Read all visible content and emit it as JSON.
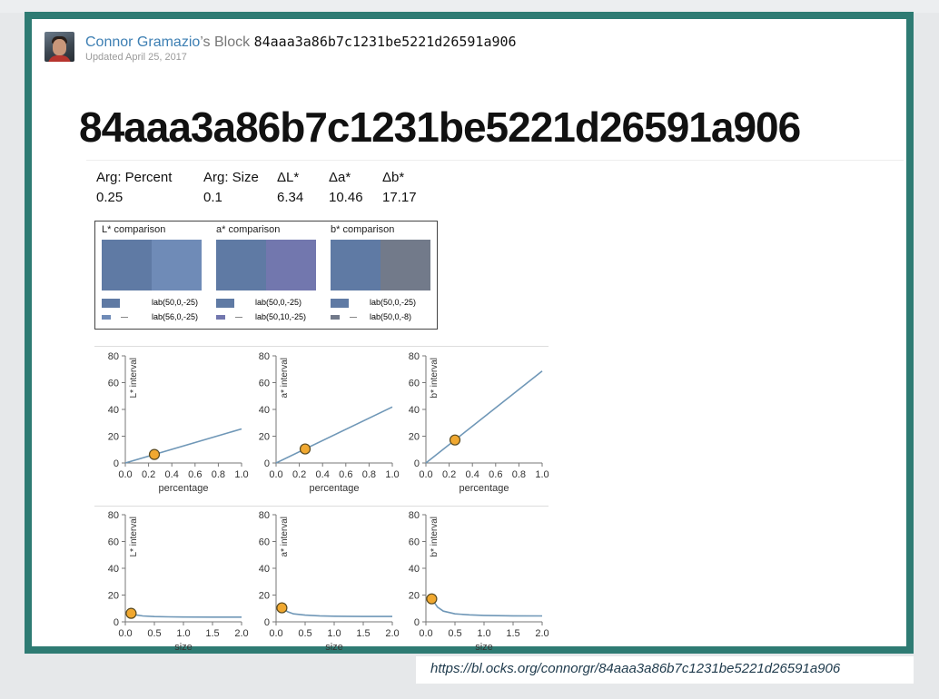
{
  "header": {
    "author": "Connor Gramazio",
    "possessive": "’s Block",
    "block_id": "84aaa3a86b7c1231be5221d26591a906",
    "updated": "Updated April 25, 2017"
  },
  "title": "84aaa3a86b7c1231be5221d26591a906",
  "args": [
    {
      "label": "Arg: Percent",
      "value": "0.25"
    },
    {
      "label": "Arg: Size",
      "value": "0.1"
    },
    {
      "label": "ΔL*",
      "value": "6.34"
    },
    {
      "label": "Δa*",
      "value": "10.46"
    },
    {
      "label": "Δb*",
      "value": "17.17"
    }
  ],
  "comparisons": [
    {
      "title": "L* comparison",
      "color_a": "#5f7aa4",
      "color_b": "#6f8bb7",
      "label_a": "lab(50,0,-25)",
      "label_b": "lab(56,0,-25)"
    },
    {
      "title": "a* comparison",
      "color_a": "#5f7aa4",
      "color_b": "#7277ae",
      "label_a": "lab(50,0,-25)",
      "label_b": "lab(50,10,-25)"
    },
    {
      "title": "b* comparison",
      "color_a": "#5f7aa4",
      "color_b": "#727a8a",
      "label_a": "lab(50,0,-25)",
      "label_b": "lab(50,0,-8)"
    }
  ],
  "chart_data": [
    {
      "type": "line",
      "xlabel": "percentage",
      "ylabel": "L* interval",
      "xlim": [
        0,
        1
      ],
      "ylim": [
        0,
        80
      ],
      "xticks": [
        "0.0",
        "0.2",
        "0.4",
        "0.6",
        "0.8",
        "1.0"
      ],
      "yticks": [
        "0",
        "20",
        "40",
        "60",
        "80"
      ],
      "x": [
        0,
        1.0
      ],
      "y": [
        0,
        25.4
      ],
      "point": {
        "x": 0.25,
        "y": 6.34
      }
    },
    {
      "type": "line",
      "xlabel": "percentage",
      "ylabel": "a* interval",
      "xlim": [
        0,
        1
      ],
      "ylim": [
        0,
        80
      ],
      "xticks": [
        "0.0",
        "0.2",
        "0.4",
        "0.6",
        "0.8",
        "1.0"
      ],
      "yticks": [
        "0",
        "20",
        "40",
        "60",
        "80"
      ],
      "x": [
        0,
        1.0
      ],
      "y": [
        0,
        41.8
      ],
      "point": {
        "x": 0.25,
        "y": 10.46
      }
    },
    {
      "type": "line",
      "xlabel": "percentage",
      "ylabel": "b* interval",
      "xlim": [
        0,
        1
      ],
      "ylim": [
        0,
        80
      ],
      "xticks": [
        "0.0",
        "0.2",
        "0.4",
        "0.6",
        "0.8",
        "1.0"
      ],
      "yticks": [
        "0",
        "20",
        "40",
        "60",
        "80"
      ],
      "x": [
        0,
        1.0
      ],
      "y": [
        0,
        68.7
      ],
      "point": {
        "x": 0.25,
        "y": 17.17
      }
    },
    {
      "type": "line",
      "xlabel": "size",
      "ylabel": "L* interval",
      "xlim": [
        0,
        2
      ],
      "ylim": [
        0,
        80
      ],
      "xticks": [
        "0.0",
        "0.5",
        "1.0",
        "1.5",
        "2.0"
      ],
      "yticks": [
        "0",
        "20",
        "40",
        "60",
        "80"
      ],
      "x": [
        0.1,
        0.2,
        0.3,
        0.5,
        0.75,
        1.0,
        1.5,
        2.0
      ],
      "y": [
        6.3,
        5.0,
        4.4,
        3.9,
        3.7,
        3.6,
        3.5,
        3.5
      ],
      "point": {
        "x": 0.1,
        "y": 6.34
      }
    },
    {
      "type": "line",
      "xlabel": "size",
      "ylabel": "a* interval",
      "xlim": [
        0,
        2
      ],
      "ylim": [
        0,
        80
      ],
      "xticks": [
        "0.0",
        "0.5",
        "1.0",
        "1.5",
        "2.0"
      ],
      "yticks": [
        "0",
        "20",
        "40",
        "60",
        "80"
      ],
      "x": [
        0.1,
        0.2,
        0.3,
        0.5,
        0.75,
        1.0,
        1.5,
        2.0
      ],
      "y": [
        10.5,
        7.5,
        6.0,
        5.0,
        4.5,
        4.2,
        4.0,
        4.0
      ],
      "point": {
        "x": 0.1,
        "y": 10.46
      }
    },
    {
      "type": "line",
      "xlabel": "size",
      "ylabel": "b* interval",
      "xlim": [
        0,
        2
      ],
      "ylim": [
        0,
        80
      ],
      "xticks": [
        "0.0",
        "0.5",
        "1.0",
        "1.5",
        "2.0"
      ],
      "yticks": [
        "0",
        "20",
        "40",
        "60",
        "80"
      ],
      "x": [
        0.1,
        0.2,
        0.3,
        0.5,
        0.75,
        1.0,
        1.5,
        2.0
      ],
      "y": [
        17.2,
        11.0,
        8.0,
        6.0,
        5.2,
        4.8,
        4.5,
        4.4
      ],
      "point": {
        "x": 0.1,
        "y": 17.17
      }
    }
  ],
  "caption": "https://bl.ocks.org/connorgr/84aaa3a86b7c1231be5221d26591a906",
  "colors": {
    "line": "#6f97b7",
    "point_fill": "#f0a830",
    "point_stroke": "#5a4a20",
    "frame": "#2e7b73"
  }
}
